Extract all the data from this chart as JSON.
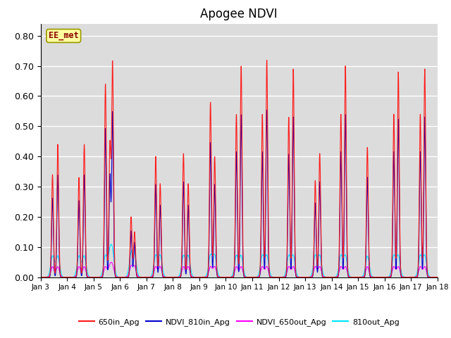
{
  "title": "Apogee NDVI",
  "ylim": [
    0.0,
    0.84
  ],
  "yticks": [
    0.0,
    0.1,
    0.2,
    0.3,
    0.4,
    0.5,
    0.6,
    0.7,
    0.8
  ],
  "xtick_labels": [
    "Jan 3",
    "Jan 4",
    "Jan 5",
    "Jan 6",
    "Jan 7",
    "Jan 8",
    "Jan 9",
    "Jan 10",
    "Jan 11",
    "Jan 12",
    "Jan 13",
    "Jan 14",
    "Jan 15",
    "Jan 16",
    "Jan 17",
    "Jan 18"
  ],
  "color_650in": "#FF1A1A",
  "color_810in": "#0000CC",
  "color_650out": "#FF00FF",
  "color_810out": "#00E5FF",
  "legend_label_650in": "650in_Apg",
  "legend_label_810in": "NDVI_810in_Apg",
  "legend_label_650out": "NDVI_650out_Apg",
  "legend_label_810out": "810out_Apg",
  "annotation_text": "EE_met",
  "bg_color": "#DCDCDC",
  "fig_color": "#FFFFFF",
  "title_fontsize": 12
}
